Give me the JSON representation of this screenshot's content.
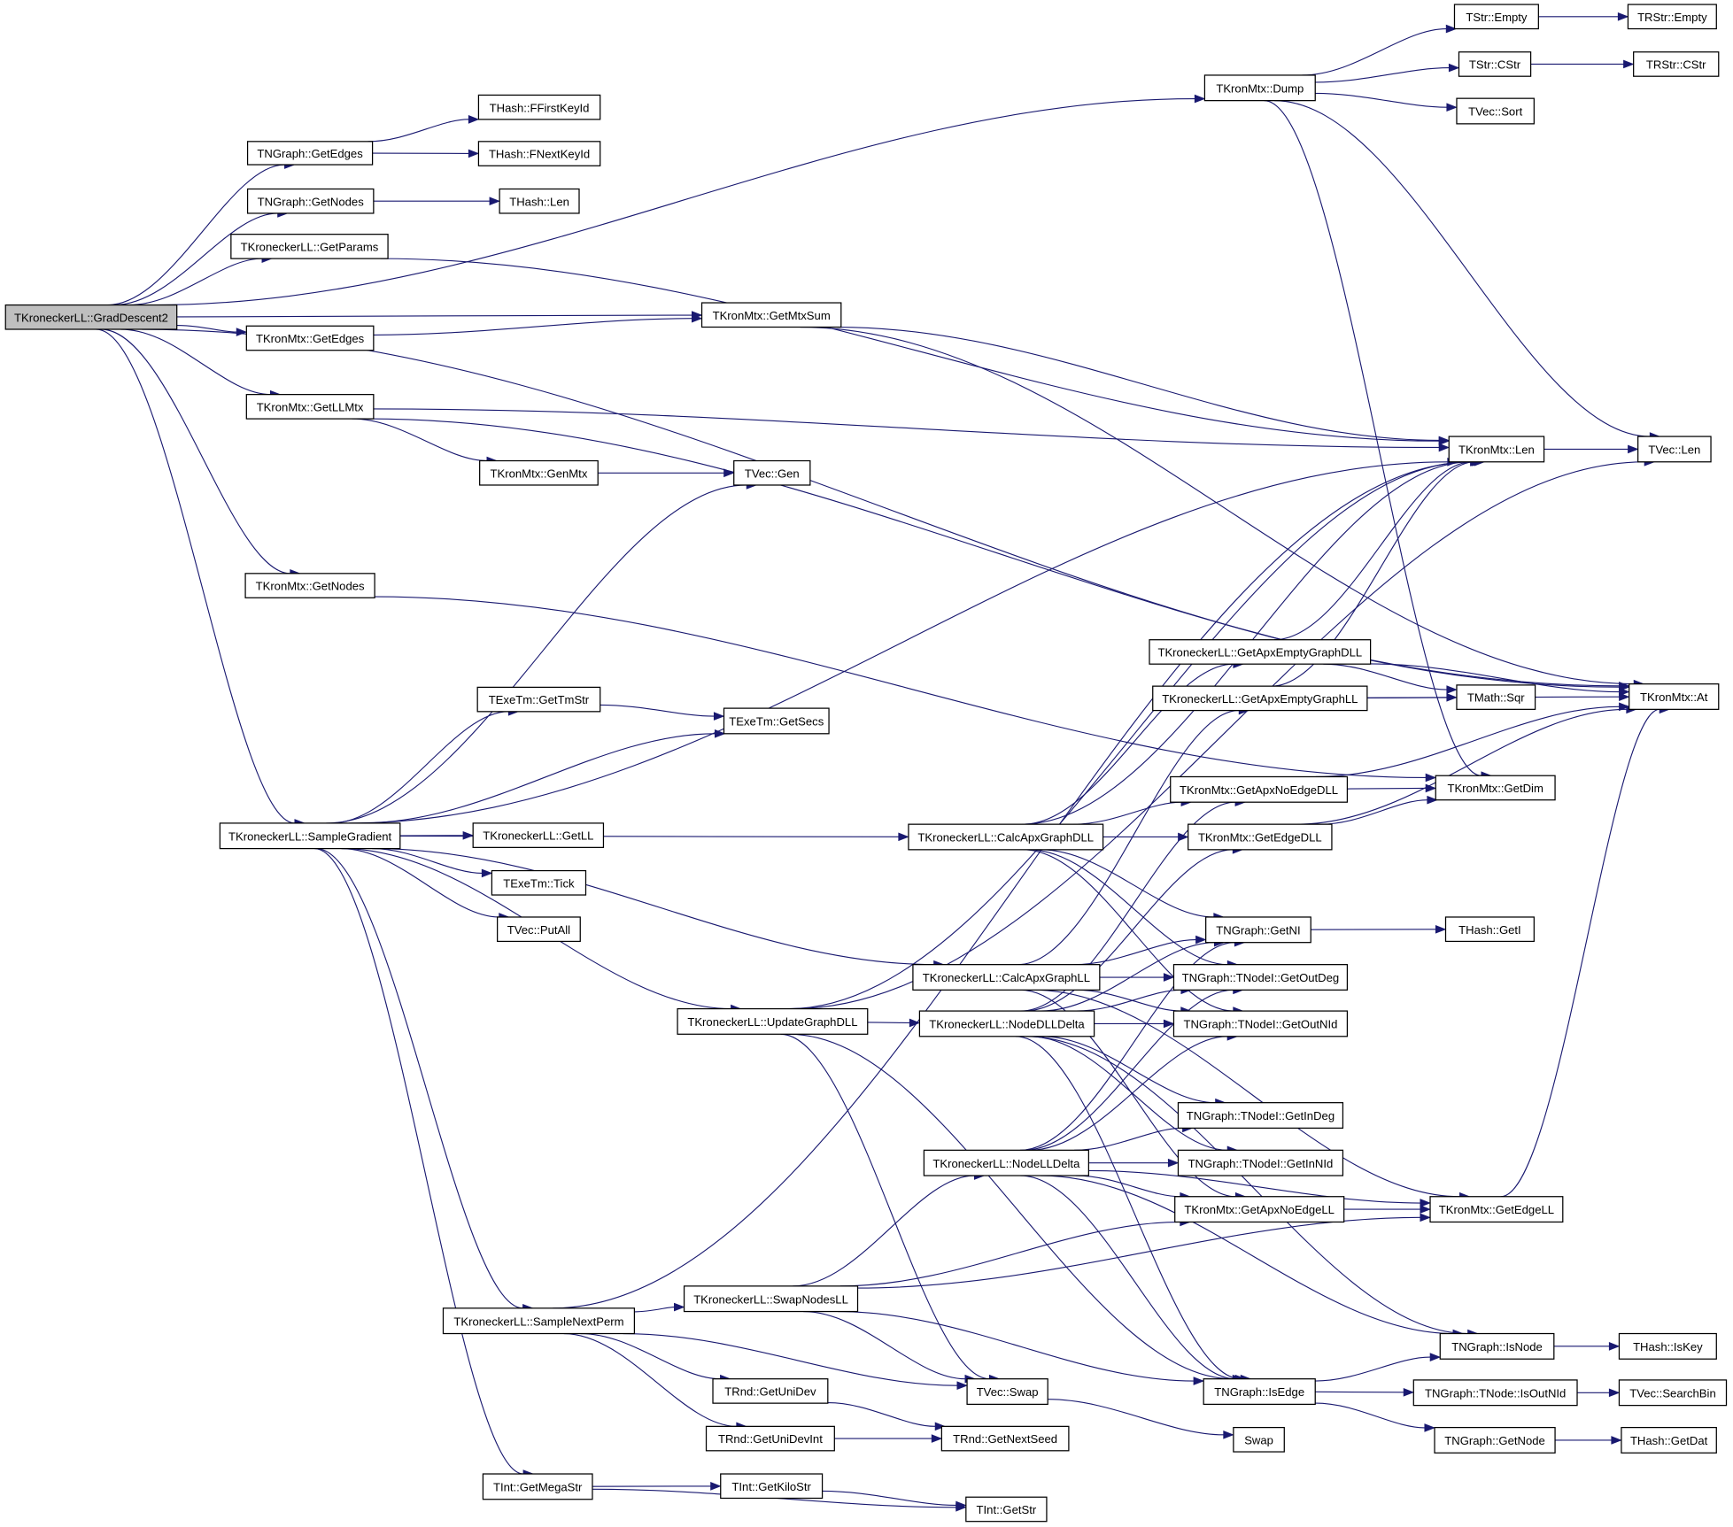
{
  "diagram": {
    "type": "call-graph",
    "root": "TKroneckerLL::GradDescent2",
    "colors": {
      "edge": "#191970",
      "root_fill": "#bfbfbf",
      "node_fill": "#ffffff",
      "node_border": "#000000"
    },
    "nodes": [
      "TKroneckerLL::GradDescent2",
      "TNGraph::GetEdges",
      "THash::FFirstKeyId",
      "THash::FNextKeyId",
      "TNGraph::GetNodes",
      "THash::Len",
      "TKroneckerLL::GetParams",
      "TKronMtx::GetMtxSum",
      "TKronMtx::GetEdges",
      "TKronMtx::GetLLMtx",
      "TKronMtx::GenMtx",
      "TVec::Gen",
      "TKronMtx::GetNodes",
      "TKronMtx::Dump",
      "TStr::Empty",
      "TRStr::Empty",
      "TStr::CStr",
      "TRStr::CStr",
      "TVec::Sort",
      "TKronMtx::Len",
      "TVec::Len",
      "TKronMtx::At",
      "TKroneckerLL::GetApxEmptyGraphDLL",
      "TKroneckerLL::GetApxEmptyGraphLL",
      "TMath::Sqr",
      "TKronMtx::GetApxNoEdgeDLL",
      "TKronMtx::GetDim",
      "TExeTm::GetTmStr",
      "TExeTm::GetSecs",
      "TKroneckerLL::SampleGradient",
      "TKroneckerLL::GetLL",
      "TKroneckerLL::CalcApxGraphDLL",
      "TKronMtx::GetEdgeDLL",
      "TExeTm::Tick",
      "TVec::PutAll",
      "TNGraph::GetNI",
      "THash::GetI",
      "TKroneckerLL::CalcApxGraphLL",
      "TNGraph::TNodeI::GetOutDeg",
      "TKroneckerLL::UpdateGraphDLL",
      "TKroneckerLL::NodeDLLDelta",
      "TNGraph::TNodeI::GetOutNId",
      "TNGraph::TNodeI::GetInDeg",
      "TKroneckerLL::NodeLLDelta",
      "TNGraph::TNodeI::GetInNId",
      "TKronMtx::GetApxNoEdgeLL",
      "TKronMtx::GetEdgeLL",
      "TKroneckerLL::SwapNodesLL",
      "TKroneckerLL::SampleNextPerm",
      "TNGraph::IsNode",
      "THash::IsKey",
      "TVec::Swap",
      "TNGraph::IsEdge",
      "TNGraph::TNode::IsOutNId",
      "TVec::SearchBin",
      "TRnd::GetUniDev",
      "TRnd::GetUniDevInt",
      "TRnd::GetNextSeed",
      "Swap",
      "TNGraph::GetNode",
      "THash::GetDat",
      "TInt::GetMegaStr",
      "TInt::GetKiloStr",
      "TInt::GetStr"
    ],
    "edges": [
      [
        0,
        13
      ],
      [
        0,
        1
      ],
      [
        0,
        4
      ],
      [
        0,
        6
      ],
      [
        0,
        7
      ],
      [
        0,
        8
      ],
      [
        0,
        9
      ],
      [
        0,
        21
      ],
      [
        0,
        12
      ],
      [
        0,
        29
      ],
      [
        1,
        2
      ],
      [
        1,
        3
      ],
      [
        4,
        5
      ],
      [
        6,
        19
      ],
      [
        7,
        19
      ],
      [
        7,
        21
      ],
      [
        8,
        7
      ],
      [
        9,
        19
      ],
      [
        9,
        21
      ],
      [
        9,
        10
      ],
      [
        10,
        11
      ],
      [
        12,
        26
      ],
      [
        13,
        14
      ],
      [
        13,
        16
      ],
      [
        13,
        18
      ],
      [
        13,
        20
      ],
      [
        13,
        26
      ],
      [
        14,
        15
      ],
      [
        16,
        17
      ],
      [
        19,
        20
      ],
      [
        22,
        19
      ],
      [
        22,
        24
      ],
      [
        22,
        21
      ],
      [
        23,
        19
      ],
      [
        23,
        24
      ],
      [
        23,
        21
      ],
      [
        25,
        26
      ],
      [
        25,
        21
      ],
      [
        32,
        26
      ],
      [
        32,
        21
      ],
      [
        35,
        36
      ],
      [
        29,
        27
      ],
      [
        29,
        28
      ],
      [
        29,
        30
      ],
      [
        29,
        31
      ],
      [
        29,
        33
      ],
      [
        29,
        34
      ],
      [
        29,
        37
      ],
      [
        29,
        39
      ],
      [
        29,
        48
      ],
      [
        29,
        61
      ],
      [
        29,
        11
      ],
      [
        29,
        19
      ],
      [
        27,
        28
      ],
      [
        31,
        25
      ],
      [
        31,
        32
      ],
      [
        31,
        35
      ],
      [
        31,
        38
      ],
      [
        31,
        41
      ],
      [
        31,
        19
      ],
      [
        31,
        22
      ],
      [
        37,
        23
      ],
      [
        37,
        35
      ],
      [
        37,
        38
      ],
      [
        37,
        41
      ],
      [
        37,
        45
      ],
      [
        37,
        46
      ],
      [
        39,
        40
      ],
      [
        39,
        19
      ],
      [
        39,
        20
      ],
      [
        39,
        52
      ],
      [
        39,
        51
      ],
      [
        40,
        35
      ],
      [
        40,
        38
      ],
      [
        40,
        41
      ],
      [
        40,
        42
      ],
      [
        40,
        44
      ],
      [
        40,
        25
      ],
      [
        40,
        32
      ],
      [
        40,
        49
      ],
      [
        40,
        52
      ],
      [
        43,
        42
      ],
      [
        43,
        44
      ],
      [
        43,
        45
      ],
      [
        43,
        46
      ],
      [
        43,
        35
      ],
      [
        43,
        38
      ],
      [
        43,
        41
      ],
      [
        43,
        49
      ],
      [
        43,
        52
      ],
      [
        45,
        46
      ],
      [
        46,
        21
      ],
      [
        47,
        43
      ],
      [
        47,
        45
      ],
      [
        47,
        46
      ],
      [
        47,
        52
      ],
      [
        47,
        51
      ],
      [
        48,
        47
      ],
      [
        48,
        51
      ],
      [
        48,
        55
      ],
      [
        48,
        56
      ],
      [
        48,
        19
      ],
      [
        49,
        50
      ],
      [
        52,
        49
      ],
      [
        52,
        53
      ],
      [
        52,
        59
      ],
      [
        53,
        54
      ],
      [
        59,
        60
      ],
      [
        51,
        58
      ],
      [
        55,
        57
      ],
      [
        56,
        57
      ],
      [
        61,
        62
      ],
      [
        61,
        63
      ],
      [
        62,
        63
      ]
    ]
  }
}
